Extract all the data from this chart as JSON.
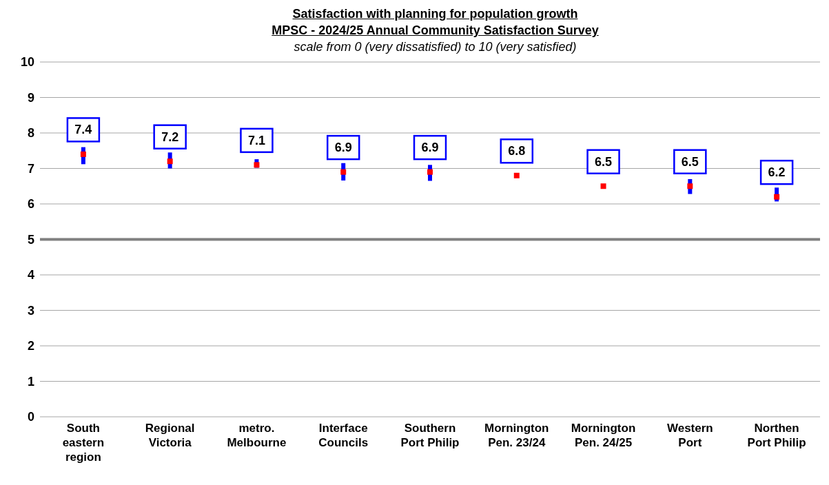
{
  "chart_data": {
    "type": "scatter",
    "title": "Satisfaction with planning for population growth",
    "subtitle": "MPSC - 2024/25 Annual Community Satisfaction Survey",
    "annotations": [
      "scale from 0 (very dissatisfied) to 10 (very satisfied)"
    ],
    "categories": [
      "South eastern region",
      "Regional Victoria",
      "metro. Melbourne",
      "Interface Councils",
      "Southern Port Philip",
      "Mornington Pen. 23/24",
      "Mornington Pen. 24/25",
      "Western Port",
      "Northen Port Philip"
    ],
    "series": [
      {
        "color": "#ff0000",
        "values": [
          7.4,
          7.2,
          7.1,
          6.9,
          6.9,
          6.8,
          6.5,
          6.5,
          6.2
        ],
        "errors": [
          [
            7.12,
            7.6
          ],
          [
            7.0,
            7.45
          ],
          [
            7.02,
            7.26
          ],
          [
            6.66,
            7.15
          ],
          [
            6.65,
            7.1
          ],
          null,
          null,
          [
            6.28,
            6.7
          ],
          [
            6.07,
            6.46
          ]
        ]
      }
    ],
    "ylim": [
      0,
      10
    ],
    "yticks": [
      0,
      1,
      2,
      3,
      4,
      5,
      6,
      7,
      8,
      9,
      10
    ],
    "grid": "y",
    "marker": "square",
    "data_labels": true,
    "ref_lines": [
      {
        "axis": "y",
        "value": 5,
        "color": "#808080"
      }
    ]
  }
}
